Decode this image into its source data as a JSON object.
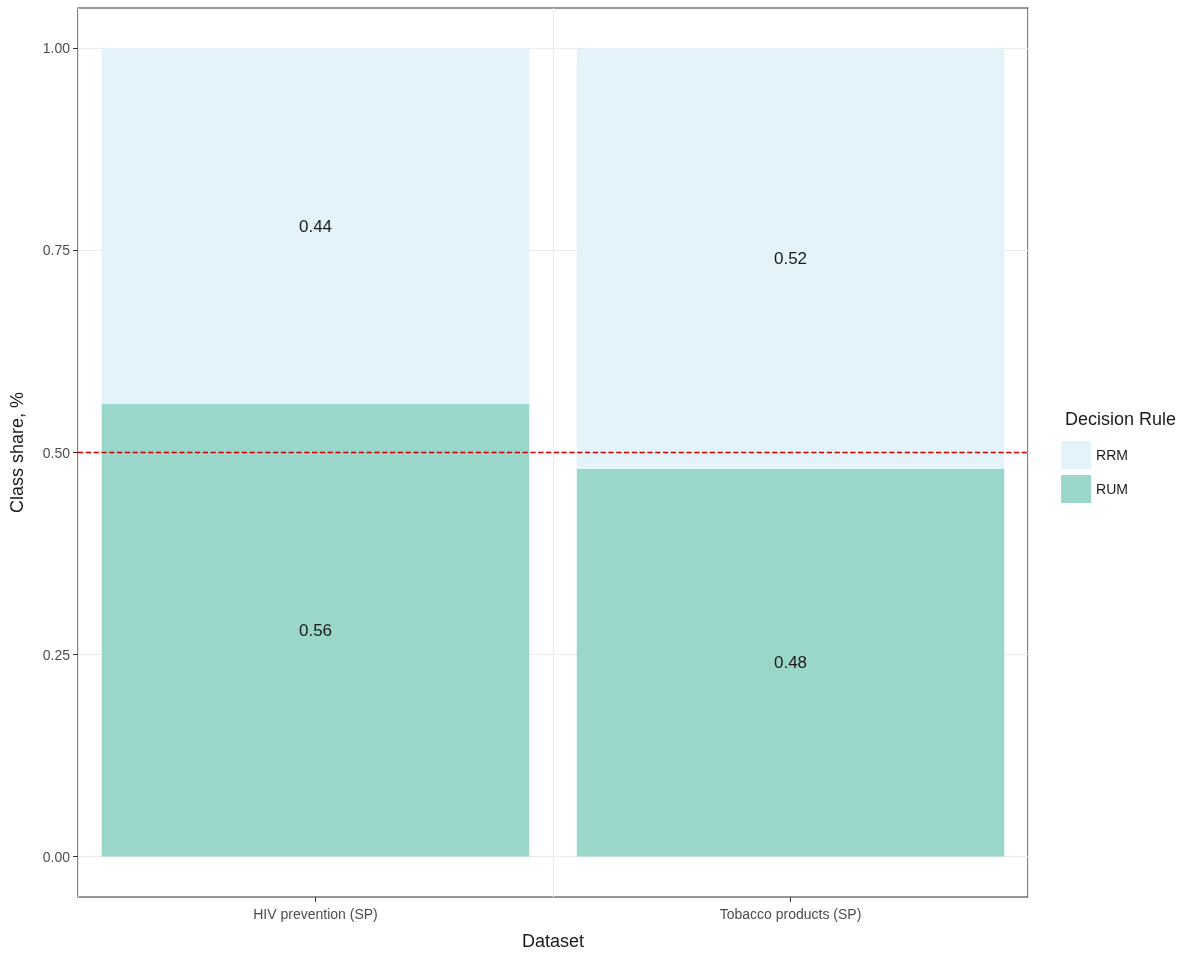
{
  "chart_data": {
    "type": "bar",
    "stacked": true,
    "xlabel": "Dataset",
    "ylabel": "Class share, %",
    "legend_title": "Decision Rule",
    "legend": "right",
    "categories": [
      "HIV prevention (SP)",
      "Tobacco products (SP)"
    ],
    "series": [
      {
        "name": "RUM",
        "color": "#9ad6c9",
        "values": [
          0.56,
          0.48
        ]
      },
      {
        "name": "RRM",
        "color": "#e4f3f9",
        "values": [
          0.44,
          0.52
        ]
      }
    ],
    "ylim": [
      -0.05,
      1.05
    ],
    "yticks": [
      {
        "value": 0,
        "label": "0.00"
      },
      {
        "value": 0.25,
        "label": "0.25"
      },
      {
        "value": 0.5,
        "label": "0.50"
      },
      {
        "value": 0.75,
        "label": "0.75"
      },
      {
        "value": 1,
        "label": "1.00"
      }
    ],
    "grid": true,
    "data_labels": true,
    "ref_lines": [
      {
        "axis": "y",
        "value": 0.5,
        "color": "#cc0000",
        "line_style": "dashed"
      }
    ]
  }
}
